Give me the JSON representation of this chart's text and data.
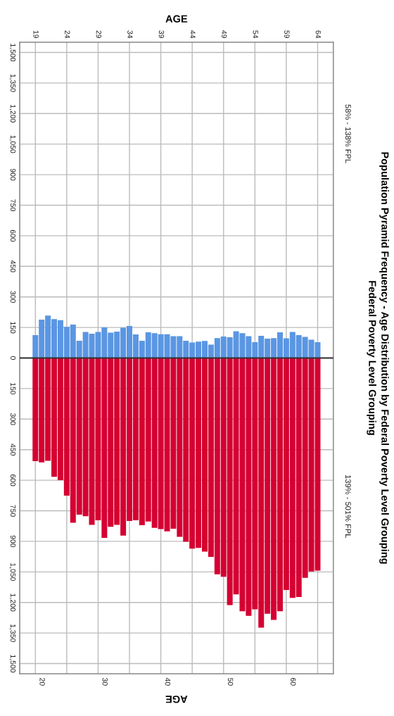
{
  "chart_data": {
    "type": "bar",
    "title": "Population Pyramid Frequency - Age Distribution by Federal Poverty Level Grouping",
    "subtitle": "Federal Poverty Level Grouping",
    "xlabel": "AGE",
    "x2label": "AGE",
    "x": [
      19,
      20,
      21,
      22,
      23,
      24,
      25,
      26,
      27,
      28,
      29,
      30,
      31,
      32,
      33,
      34,
      35,
      36,
      37,
      38,
      39,
      40,
      41,
      42,
      43,
      44,
      45,
      46,
      47,
      48,
      49,
      50,
      51,
      52,
      53,
      54,
      55,
      56,
      57,
      58,
      59,
      60,
      61,
      62,
      63,
      64
    ],
    "xlim": [
      16.5,
      66.5
    ],
    "xticks": [
      20,
      30,
      40,
      50,
      60
    ],
    "x2lim": [
      16.5,
      66.5
    ],
    "x2ticks": [
      19,
      24,
      29,
      34,
      39,
      44,
      49,
      54,
      59,
      64
    ],
    "ylim": [
      -1550,
      1550
    ],
    "yticks": [
      {
        "value": -1500,
        "label": "1,500"
      },
      {
        "value": -1350,
        "label": "1,350"
      },
      {
        "value": -1200,
        "label": "1,200"
      },
      {
        "value": -1050,
        "label": "1,050"
      },
      {
        "value": -900,
        "label": "900"
      },
      {
        "value": -750,
        "label": "750"
      },
      {
        "value": -600,
        "label": "600"
      },
      {
        "value": -450,
        "label": "450"
      },
      {
        "value": -300,
        "label": "300"
      },
      {
        "value": -150,
        "label": "150"
      },
      0,
      150,
      300,
      450,
      600,
      750,
      900,
      {
        "value": 1050,
        "label": "1,050"
      },
      {
        "value": 1200,
        "label": "1,200"
      },
      {
        "value": 1350,
        "label": "1,350"
      },
      {
        "value": 1500,
        "label": "1,500"
      }
    ],
    "series": [
      {
        "name": "58% - 138% FPL",
        "color": "#5a96e3",
        "values": [
          112,
          188,
          208,
          191,
          186,
          153,
          164,
          85,
          128,
          119,
          128,
          150,
          124,
          130,
          149,
          157,
          116,
          85,
          126,
          122,
          117,
          117,
          107,
          107,
          85,
          76,
          80,
          84,
          66,
          98,
          105,
          102,
          131,
          122,
          107,
          78,
          109,
          95,
          98,
          126,
          97,
          128,
          112,
          104,
          90,
          78
        ]
      },
      {
        "name": "139% - 501% FPL",
        "color": "#d50032",
        "values": [
          -506,
          -512,
          -505,
          -583,
          -600,
          -676,
          -809,
          -769,
          -777,
          -819,
          -797,
          -883,
          -829,
          -819,
          -872,
          -800,
          -797,
          -821,
          -803,
          -834,
          -840,
          -851,
          -838,
          -878,
          -902,
          -936,
          -932,
          -950,
          -976,
          -1062,
          -1074,
          -1213,
          -1160,
          -1243,
          -1266,
          -1234,
          -1324,
          -1255,
          -1286,
          -1243,
          -1139,
          -1178,
          -1173,
          -1079,
          -1048,
          -1044
        ]
      }
    ],
    "ref_lines": [
      {
        "axis": "y",
        "value": 0,
        "color": "#333333"
      }
    ],
    "stacked": true,
    "grid": true
  }
}
